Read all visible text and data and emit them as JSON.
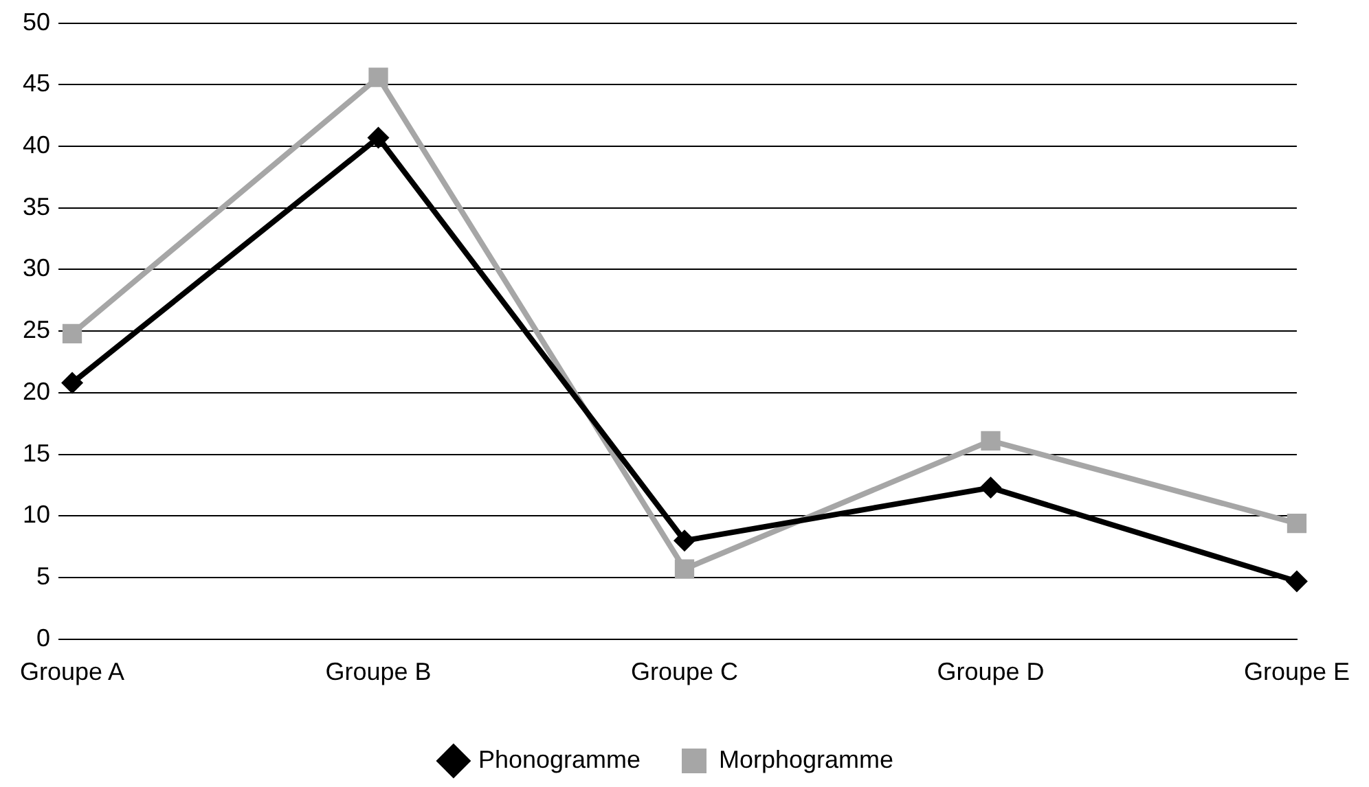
{
  "chart_data": {
    "type": "line",
    "categories": [
      "Groupe A",
      "Groupe B",
      "Groupe C",
      "Groupe D",
      "Groupe E"
    ],
    "series": [
      {
        "name": "Phonogramme",
        "color": "#000000",
        "marker": "diamond",
        "values": [
          20.8,
          40.7,
          8.0,
          12.3,
          4.7
        ]
      },
      {
        "name": "Morphogramme",
        "color": "#a6a6a6",
        "marker": "square",
        "values": [
          24.8,
          45.6,
          5.7,
          16.1,
          9.4
        ]
      }
    ],
    "ylim": [
      0,
      50
    ],
    "yticks": [
      0,
      5,
      10,
      15,
      20,
      25,
      30,
      35,
      40,
      45,
      50
    ],
    "grid": "y",
    "legend": "bottom",
    "line_style": "solid"
  }
}
